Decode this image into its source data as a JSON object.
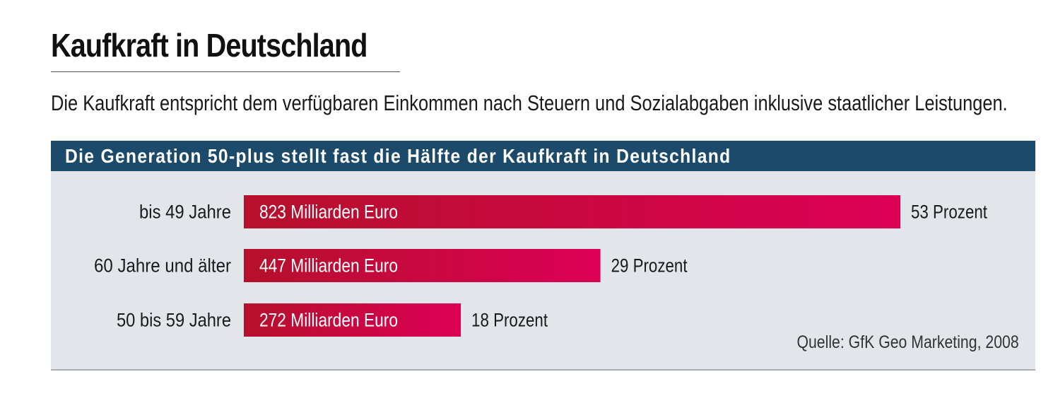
{
  "title": "Kaufkraft in Deutschland",
  "subtitle": "Die Kaufkraft entspricht dem verfügbaren Einkommen nach Steuern und Sozialabgaben inklusive staatlicher Leistungen.",
  "chart_header": "Die Generation 50-plus stellt fast die Hälfte der Kaufkraft in Deutschland",
  "source": "Quelle: GfK Geo Marketing, 2008",
  "colors": {
    "header_bar": "#1c4a6a",
    "panel": "#e2e6ea",
    "bar_start": "#b5102c",
    "bar_end": "#dc0055"
  },
  "chart_data": {
    "type": "bar",
    "orientation": "horizontal",
    "categories": [
      "bis 49 Jahre",
      "60 Jahre und älter",
      "50 bis 59 Jahre"
    ],
    "values": [
      823,
      447,
      272
    ],
    "value_labels": [
      "823 Milliarden Euro",
      "447 Milliarden Euro",
      "272 Milliarden Euro"
    ],
    "percent_values": [
      53,
      29,
      18
    ],
    "percent_labels": [
      "53 Prozent",
      "29 Prozent",
      "18 Prozent"
    ],
    "unit": "Milliarden Euro",
    "title": "Die Generation 50-plus stellt fast die Hälfte der Kaufkraft in Deutschland",
    "xlabel": "",
    "ylabel": "",
    "grid": false,
    "legend": "none"
  }
}
